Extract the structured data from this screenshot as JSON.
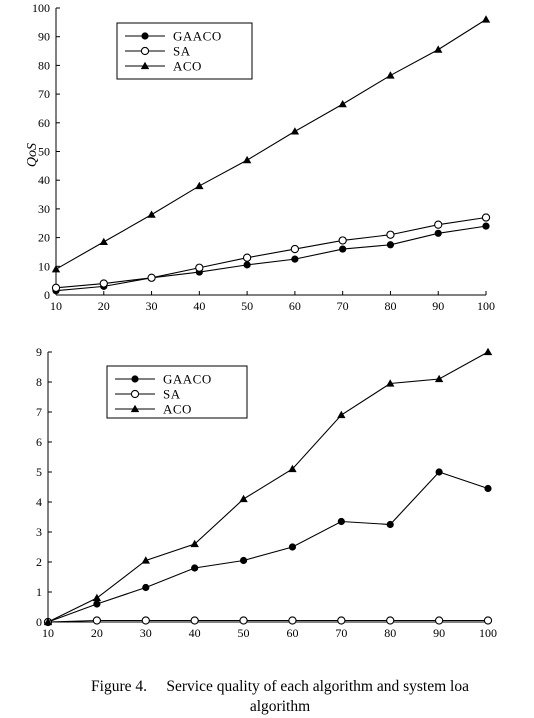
{
  "chart_data": [
    {
      "type": "line",
      "title": "",
      "xlabel": "",
      "ylabel": "QoS",
      "x": [
        10,
        20,
        30,
        40,
        50,
        60,
        70,
        80,
        90,
        100
      ],
      "xlim": [
        10,
        100
      ],
      "ylim": [
        0,
        100
      ],
      "yticks": [
        0,
        10,
        20,
        30,
        40,
        50,
        60,
        70,
        80,
        90,
        100
      ],
      "legend_position": "top-left",
      "series": [
        {
          "name": "GAACO",
          "marker": "filled-circle",
          "values": [
            1.5,
            3,
            6,
            8,
            10.5,
            12.5,
            16,
            17.5,
            21.5,
            24
          ]
        },
        {
          "name": "SA",
          "marker": "open-circle",
          "values": [
            2.5,
            4,
            6,
            9.5,
            13,
            16,
            19,
            21,
            24.5,
            27
          ]
        },
        {
          "name": "ACO",
          "marker": "triangle",
          "values": [
            9,
            18.5,
            28,
            38,
            47,
            57,
            66.5,
            76.5,
            85.5,
            96
          ]
        }
      ]
    },
    {
      "type": "line",
      "title": "",
      "xlabel": "",
      "ylabel": "",
      "x": [
        10,
        20,
        30,
        40,
        50,
        60,
        70,
        80,
        90,
        100
      ],
      "xlim": [
        10,
        100
      ],
      "ylim": [
        0,
        9
      ],
      "yticks": [
        0,
        1,
        2,
        3,
        4,
        5,
        6,
        7,
        8,
        9
      ],
      "legend_position": "top-left",
      "series": [
        {
          "name": "GAACO",
          "marker": "filled-circle",
          "values": [
            0,
            0.6,
            1.15,
            1.8,
            2.05,
            2.5,
            3.35,
            3.25,
            5.0,
            4.45
          ]
        },
        {
          "name": "SA",
          "marker": "open-circle",
          "values": [
            0,
            0.05,
            0.05,
            0.05,
            0.05,
            0.05,
            0.05,
            0.05,
            0.05,
            0.05
          ]
        },
        {
          "name": "ACO",
          "marker": "triangle",
          "values": [
            0,
            0.8,
            2.05,
            2.6,
            4.1,
            5.1,
            6.9,
            7.95,
            8.1,
            9.0
          ]
        }
      ]
    }
  ],
  "caption": {
    "line1": "Figure 4.     Service quality of each algorithm and system loa",
    "line2": "algorithm"
  }
}
